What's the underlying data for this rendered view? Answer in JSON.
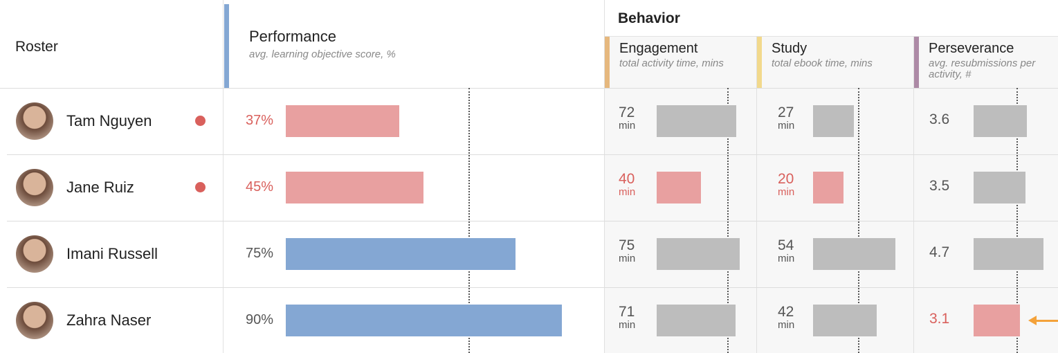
{
  "roster": {
    "title": "Roster"
  },
  "performance": {
    "title": "Performance",
    "subtitle": "avg. learning objective score, %"
  },
  "behavior": {
    "title": "Behavior",
    "columns": [
      {
        "key": "engagement",
        "title": "Engagement",
        "subtitle": "total activity time, mins",
        "unit": "min",
        "color": "#e6b87e"
      },
      {
        "key": "study",
        "title": "Study",
        "subtitle": "total ebook time, mins",
        "unit": "min",
        "color": "#f2d98c"
      },
      {
        "key": "perseverance",
        "title": "Perseverance",
        "subtitle": "avg. resubmissions per activity, #",
        "color": "#ad8aa6"
      }
    ]
  },
  "colors": {
    "performance": "#84a7d3",
    "neutral": "#bdbdbd",
    "alert": "#e8a0a0",
    "alert_text": "#d9605c",
    "accent": "#84a7d3",
    "arrow": "#f4a23a"
  },
  "rows": [
    {
      "name": "Tam Nguyen",
      "flag": true,
      "performance": {
        "value": 37,
        "label": "37%",
        "alert": true
      },
      "engagement": {
        "value": 72,
        "alert": false
      },
      "study": {
        "value": 27,
        "alert": false
      },
      "perseverance": {
        "value": 3.6,
        "alert": false
      }
    },
    {
      "name": "Jane Ruiz",
      "flag": true,
      "performance": {
        "value": 45,
        "label": "45%",
        "alert": true
      },
      "engagement": {
        "value": 40,
        "alert": true
      },
      "study": {
        "value": 20,
        "alert": true
      },
      "perseverance": {
        "value": 3.5,
        "alert": false
      }
    },
    {
      "name": "Imani Russell",
      "flag": false,
      "performance": {
        "value": 75,
        "label": "75%",
        "alert": false
      },
      "engagement": {
        "value": 75,
        "alert": false
      },
      "study": {
        "value": 54,
        "alert": false
      },
      "perseverance": {
        "value": 4.7,
        "alert": false
      }
    },
    {
      "name": "Zahra Naser",
      "flag": false,
      "performance": {
        "value": 90,
        "label": "90%",
        "alert": false
      },
      "engagement": {
        "value": 71,
        "alert": false
      },
      "study": {
        "value": 42,
        "alert": false
      },
      "perseverance": {
        "value": 3.1,
        "alert": true,
        "arrow": true
      }
    }
  ]
}
